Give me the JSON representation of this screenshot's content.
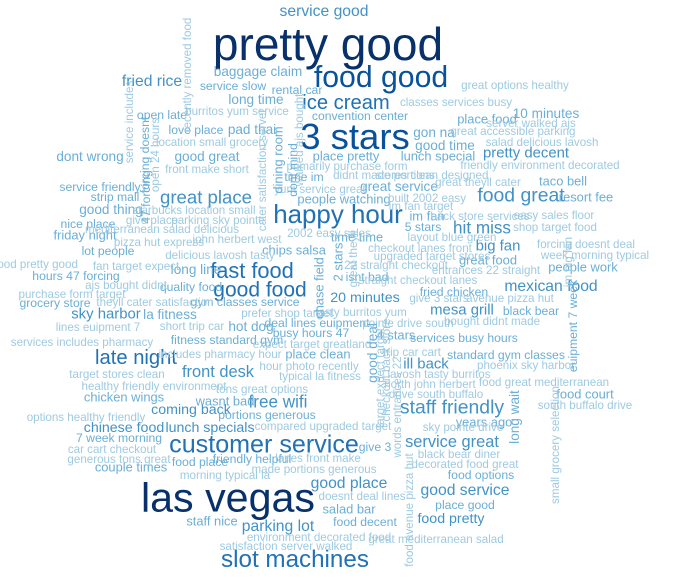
{
  "chart_data": {
    "type": "wordcloud",
    "scale_max": 100,
    "colors": [
      "#08306b",
      "#08519c",
      "#2171b5",
      "#4292c6",
      "#6baed6",
      "#9ecae1"
    ],
    "words": [
      {
        "text": "pretty good",
        "weight": 100,
        "vertical": false
      },
      {
        "text": "las vegas",
        "weight": 90,
        "vertical": false
      },
      {
        "text": "3 stars",
        "weight": 80,
        "vertical": false
      },
      {
        "text": "food good",
        "weight": 66,
        "vertical": false
      },
      {
        "text": "happy hour",
        "weight": 56,
        "vertical": false
      },
      {
        "text": "customer service",
        "weight": 54,
        "vertical": false
      },
      {
        "text": "slot machines",
        "weight": 52,
        "vertical": false
      },
      {
        "text": "fast food",
        "weight": 46,
        "vertical": false
      },
      {
        "text": "good food",
        "weight": 44,
        "vertical": false
      },
      {
        "text": "ice cream",
        "weight": 42,
        "vertical": false
      },
      {
        "text": "late night",
        "weight": 42,
        "vertical": false
      },
      {
        "text": "staff friendly",
        "weight": 40,
        "vertical": false
      },
      {
        "text": "food great",
        "weight": 40,
        "vertical": false
      },
      {
        "text": "great place",
        "weight": 38,
        "vertical": false
      },
      {
        "text": "hit miss",
        "weight": 34,
        "vertical": false
      },
      {
        "text": "free wifi",
        "weight": 34,
        "vertical": false
      },
      {
        "text": "front desk",
        "weight": 32,
        "vertical": false
      },
      {
        "text": "service great",
        "weight": 32,
        "vertical": false
      },
      {
        "text": "good service",
        "weight": 30,
        "vertical": false
      },
      {
        "text": "good place",
        "weight": 30,
        "vertical": false
      },
      {
        "text": "parking lot",
        "weight": 30,
        "vertical": false
      },
      {
        "text": "mexican food",
        "weight": 30,
        "vertical": false
      },
      {
        "text": "fried rice",
        "weight": 30,
        "vertical": false
      },
      {
        "text": "service good",
        "weight": 30,
        "vertical": false
      },
      {
        "text": "sky harbor",
        "weight": 28,
        "vertical": false
      },
      {
        "text": "mesa grill",
        "weight": 28,
        "vertical": false
      },
      {
        "text": "big fan",
        "weight": 28,
        "vertical": false
      },
      {
        "text": "ill back",
        "weight": 28,
        "vertical": false
      },
      {
        "text": "pretty decent",
        "weight": 28,
        "vertical": false
      },
      {
        "text": "20 minutes",
        "weight": 26,
        "vertical": false
      },
      {
        "text": "lunch specials",
        "weight": 26,
        "vertical": false
      },
      {
        "text": "chinese food",
        "weight": 26,
        "vertical": false
      },
      {
        "text": "coming back",
        "weight": 26,
        "vertical": false
      },
      {
        "text": "food pretty",
        "weight": 26,
        "vertical": false
      },
      {
        "text": "good great",
        "weight": 24,
        "vertical": false
      },
      {
        "text": "baggage claim",
        "weight": 24,
        "vertical": false
      },
      {
        "text": "good time",
        "weight": 24,
        "vertical": false
      },
      {
        "text": "gon na",
        "weight": 24,
        "vertical": false
      },
      {
        "text": "10 minutes",
        "weight": 24,
        "vertical": false
      },
      {
        "text": "great service",
        "weight": 24,
        "vertical": false
      },
      {
        "text": "long time",
        "weight": 24,
        "vertical": false
      },
      {
        "text": "pad thai",
        "weight": 24,
        "vertical": false
      },
      {
        "text": "hot dog",
        "weight": 24,
        "vertical": false
      },
      {
        "text": "long line",
        "weight": 24,
        "vertical": false
      },
      {
        "text": "good thing",
        "weight": 24,
        "vertical": false
      },
      {
        "text": "dont wrong",
        "weight": 24,
        "vertical": false
      },
      {
        "text": "la fitness",
        "weight": 24,
        "vertical": false
      },
      {
        "text": "friday night",
        "weight": 22,
        "vertical": false
      },
      {
        "text": "place pretty",
        "weight": 22,
        "vertical": false
      },
      {
        "text": "lunch special",
        "weight": 22,
        "vertical": false
      },
      {
        "text": "people watching",
        "weight": 22,
        "vertical": false
      },
      {
        "text": "im fan",
        "weight": 22,
        "vertical": false
      },
      {
        "text": "great food",
        "weight": 22,
        "vertical": false
      },
      {
        "text": "place food",
        "weight": 22,
        "vertical": false
      },
      {
        "text": "taco bell",
        "weight": 22,
        "vertical": false
      },
      {
        "text": "resort fee",
        "weight": 22,
        "vertical": false
      },
      {
        "text": "chips salsa",
        "weight": 22,
        "vertical": false
      },
      {
        "text": "time time",
        "weight": 22,
        "vertical": false
      },
      {
        "text": "place clean",
        "weight": 22,
        "vertical": false
      },
      {
        "text": "wasnt bad",
        "weight": 22,
        "vertical": false
      },
      {
        "text": "chicken wings",
        "weight": 22,
        "vertical": false
      },
      {
        "text": "couple times",
        "weight": 22,
        "vertical": false
      },
      {
        "text": "salad bar",
        "weight": 22,
        "vertical": false
      },
      {
        "text": "staff nice",
        "weight": 22,
        "vertical": false
      },
      {
        "text": "years ago",
        "weight": 22,
        "vertical": false
      },
      {
        "text": "food court",
        "weight": 22,
        "vertical": false
      },
      {
        "text": "4 stars",
        "weight": 22,
        "vertical": false
      },
      {
        "text": "people work",
        "weight": 22,
        "vertical": false
      },
      {
        "text": "service slow",
        "weight": 20,
        "vertical": false
      },
      {
        "text": "open late",
        "weight": 20,
        "vertical": false
      },
      {
        "text": "love place",
        "weight": 20,
        "vertical": false
      },
      {
        "text": "rental car",
        "weight": 20,
        "vertical": false
      },
      {
        "text": "convention center",
        "weight": 20,
        "vertical": false
      },
      {
        "text": "fried chicken",
        "weight": 20,
        "vertical": false
      },
      {
        "text": "quality food",
        "weight": 20,
        "vertical": false
      },
      {
        "text": "gym classes service",
        "weight": 20,
        "vertical": false
      },
      {
        "text": "portions generous",
        "weight": 20,
        "vertical": false
      },
      {
        "text": "time im",
        "weight": 20,
        "vertical": false
      },
      {
        "text": "service friendly",
        "weight": 20,
        "vertical": false
      },
      {
        "text": "strip mall",
        "weight": 20,
        "vertical": false
      },
      {
        "text": "nice place",
        "weight": 20,
        "vertical": false
      },
      {
        "text": "lot people",
        "weight": 20,
        "vertical": false
      },
      {
        "text": "grocery store",
        "weight": 20,
        "vertical": false
      },
      {
        "text": "hours 47 forcing",
        "weight": 20,
        "vertical": false
      },
      {
        "text": "isnt bad",
        "weight": 20,
        "vertical": false
      },
      {
        "text": "5 stars",
        "weight": 20,
        "vertical": false
      },
      {
        "text": "busy hours 47",
        "weight": 20,
        "vertical": false
      },
      {
        "text": "deal lines euipment",
        "weight": 20,
        "vertical": false
      },
      {
        "text": "services busy hours",
        "weight": 20,
        "vertical": false
      },
      {
        "text": "standard gym classes",
        "weight": 20,
        "vertical": false
      },
      {
        "text": "food place",
        "weight": 20,
        "vertical": false
      },
      {
        "text": "friendly helpful",
        "weight": 20,
        "vertical": false
      },
      {
        "text": "food decent",
        "weight": 20,
        "vertical": false
      },
      {
        "text": "food options",
        "weight": 20,
        "vertical": false
      },
      {
        "text": "give 3",
        "weight": 20,
        "vertical": false
      },
      {
        "text": "7 week morning",
        "weight": 20,
        "vertical": false
      },
      {
        "text": "fitness standard gym",
        "weight": 20,
        "vertical": false
      },
      {
        "text": "classes services busy",
        "weight": 18,
        "vertical": false
      },
      {
        "text": "great options healthy",
        "weight": 18,
        "vertical": false
      },
      {
        "text": "burritos yum service",
        "weight": 18,
        "vertical": false
      },
      {
        "text": "server walked ajs",
        "weight": 18,
        "vertical": false
      },
      {
        "text": "location small grocery",
        "weight": 18,
        "vertical": false
      },
      {
        "text": "front make short",
        "weight": 18,
        "vertical": false
      },
      {
        "text": "primarily purchase form",
        "weight": 18,
        "vertical": false
      },
      {
        "text": "didnt made portions",
        "weight": 18,
        "vertical": false
      },
      {
        "text": "yum service great",
        "weight": 18,
        "vertical": false
      },
      {
        "text": "built 2002 easy",
        "weight": 18,
        "vertical": false
      },
      {
        "text": "starbucks location small",
        "weight": 18,
        "vertical": false
      },
      {
        "text": "give place",
        "weight": 18,
        "vertical": false
      },
      {
        "text": "parking sky pointe",
        "weight": 18,
        "vertical": false
      },
      {
        "text": "mediterranean salad delicious",
        "weight": 18,
        "vertical": false
      },
      {
        "text": "2002 easy sales",
        "weight": 18,
        "vertical": false
      },
      {
        "text": "john herbert west",
        "weight": 18,
        "vertical": false
      },
      {
        "text": "pizza hut express",
        "weight": 18,
        "vertical": false
      },
      {
        "text": "delicious lavosh tasty",
        "weight": 18,
        "vertical": false
      },
      {
        "text": "food pretty good",
        "weight": 18,
        "vertical": false
      },
      {
        "text": "fan target expect",
        "weight": 18,
        "vertical": false
      },
      {
        "text": "ajs bought didnt",
        "weight": 18,
        "vertical": false
      },
      {
        "text": "purchase form target",
        "weight": 18,
        "vertical": false
      },
      {
        "text": "theyll cater satisfaction",
        "weight": 18,
        "vertical": false
      },
      {
        "text": "prefer shop target",
        "weight": 18,
        "vertical": false
      },
      {
        "text": "short trip car",
        "weight": 18,
        "vertical": false
      },
      {
        "text": "lines euipment 7",
        "weight": 18,
        "vertical": false
      },
      {
        "text": "tasty burritos yum",
        "weight": 18,
        "vertical": false
      },
      {
        "text": "pointe drive south",
        "weight": 18,
        "vertical": false
      },
      {
        "text": "bought didnt made",
        "weight": 18,
        "vertical": false
      },
      {
        "text": "expect target greatland",
        "weight": 18,
        "vertical": false
      },
      {
        "text": "services includes pharmacy",
        "weight": 18,
        "vertical": false
      },
      {
        "text": "includes pharmacy hour",
        "weight": 18,
        "vertical": false
      },
      {
        "text": "hour photo recently",
        "weight": 18,
        "vertical": false
      },
      {
        "text": "target stores clean",
        "weight": 18,
        "vertical": false
      },
      {
        "text": "typical la fitness",
        "weight": 18,
        "vertical": false
      },
      {
        "text": "healthy friendly environment",
        "weight": 18,
        "vertical": false
      },
      {
        "text": "tons great options",
        "weight": 18,
        "vertical": false
      },
      {
        "text": "options healthy friendly",
        "weight": 18,
        "vertical": false
      },
      {
        "text": "compared upgraded target",
        "weight": 18,
        "vertical": false
      },
      {
        "text": "car cart checkout",
        "weight": 18,
        "vertical": false
      },
      {
        "text": "generous tons great",
        "weight": 18,
        "vertical": false
      },
      {
        "text": "morning typical la",
        "weight": 18,
        "vertical": false
      },
      {
        "text": "lanes front make",
        "weight": 18,
        "vertical": false
      },
      {
        "text": "made portions generous",
        "weight": 18,
        "vertical": false
      },
      {
        "text": "doesnt deal lines",
        "weight": 18,
        "vertical": false
      },
      {
        "text": "environment decorated food",
        "weight": 18,
        "vertical": false
      },
      {
        "text": "great mediterranean salad",
        "weight": 18,
        "vertical": false
      },
      {
        "text": "satisfaction server walked",
        "weight": 18,
        "vertical": false
      },
      {
        "text": "black bear diner",
        "weight": 18,
        "vertical": false
      },
      {
        "text": "decorated food great",
        "weight": 18,
        "vertical": false
      },
      {
        "text": "place good",
        "weight": 20,
        "vertical": false
      },
      {
        "text": "phoenix sky harbor",
        "weight": 18,
        "vertical": false
      },
      {
        "text": "lavosh tasty burritos",
        "weight": 18,
        "vertical": false
      },
      {
        "text": "north john herbert",
        "weight": 18,
        "vertical": false
      },
      {
        "text": "drive south buffalo",
        "weight": 18,
        "vertical": false
      },
      {
        "text": "food great mediterranean",
        "weight": 18,
        "vertical": false
      },
      {
        "text": "south buffalo drive",
        "weight": 18,
        "vertical": false
      },
      {
        "text": "sky pointe drive",
        "weight": 18,
        "vertical": false
      },
      {
        "text": "trip car cart",
        "weight": 18,
        "vertical": false
      },
      {
        "text": "give 3 stars",
        "weight": 18,
        "vertical": false
      },
      {
        "text": "avenue pizza hut",
        "weight": 18,
        "vertical": false
      },
      {
        "text": "black bear",
        "weight": 20,
        "vertical": false
      },
      {
        "text": "22 straight checkout",
        "weight": 18,
        "vertical": false
      },
      {
        "text": "straight checkout lanes",
        "weight": 18,
        "vertical": false
      },
      {
        "text": "entrances 22 straight",
        "weight": 18,
        "vertical": false
      },
      {
        "text": "upgraded target stores",
        "weight": 18,
        "vertical": false
      },
      {
        "text": "checkout lanes front",
        "weight": 18,
        "vertical": false
      },
      {
        "text": "layout blue green",
        "weight": 18,
        "vertical": false
      },
      {
        "text": "back store services",
        "weight": 18,
        "vertical": false
      },
      {
        "text": "easy sales floor",
        "weight": 18,
        "vertical": false
      },
      {
        "text": "shop target food",
        "weight": 18,
        "vertical": false
      },
      {
        "text": "forcing doesnt deal",
        "weight": 18,
        "vertical": false
      },
      {
        "text": "week morning typical",
        "weight": 18,
        "vertical": false
      },
      {
        "text": "great accessible parking",
        "weight": 18,
        "vertical": false
      },
      {
        "text": "salad delicious lavosh",
        "weight": 18,
        "vertical": false
      },
      {
        "text": "friendly environment decorated",
        "weight": 18,
        "vertical": false
      },
      {
        "text": "stores clean designed",
        "weight": 18,
        "vertical": false
      },
      {
        "text": "great theyll cater",
        "weight": 18,
        "vertical": false
      },
      {
        "text": "im fan target",
        "weight": 18,
        "vertical": false
      },
      {
        "text": "service includes",
        "weight": 18,
        "vertical": true
      },
      {
        "text": "recently removed food",
        "weight": 18,
        "vertical": true
      },
      {
        "text": "forcing doesnt",
        "weight": 20,
        "vertical": true
      },
      {
        "text": "open 24 hours",
        "weight": 18,
        "vertical": true
      },
      {
        "text": "47 forcing",
        "weight": 20,
        "vertical": true
      },
      {
        "text": "cater satisfaction server",
        "weight": 18,
        "vertical": true
      },
      {
        "text": "dont mind",
        "weight": 20,
        "vertical": true
      },
      {
        "text": "dining room",
        "weight": 22,
        "vertical": true
      },
      {
        "text": "walked ajs bought",
        "weight": 18,
        "vertical": true
      },
      {
        "text": "chase field",
        "weight": 22,
        "vertical": true
      },
      {
        "text": "2 stars",
        "weight": 22,
        "vertical": true
      },
      {
        "text": "great theyll",
        "weight": 18,
        "vertical": true
      },
      {
        "text": "good deal",
        "weight": 24,
        "vertical": true
      },
      {
        "text": "checkout back store",
        "weight": 18,
        "vertical": true
      },
      {
        "text": "target expect target",
        "weight": 18,
        "vertical": true
      },
      {
        "text": "food avenue pizza hut",
        "weight": 18,
        "vertical": true
      },
      {
        "text": "words entrances 22",
        "weight": 18,
        "vertical": true
      },
      {
        "text": "long wait",
        "weight": 24,
        "vertical": true
      },
      {
        "text": "small grocery selection",
        "weight": 18,
        "vertical": true
      },
      {
        "text": "euipment 7 week",
        "weight": 20,
        "vertical": true
      },
      {
        "text": "im big fan",
        "weight": 18,
        "vertical": true
      }
    ]
  }
}
